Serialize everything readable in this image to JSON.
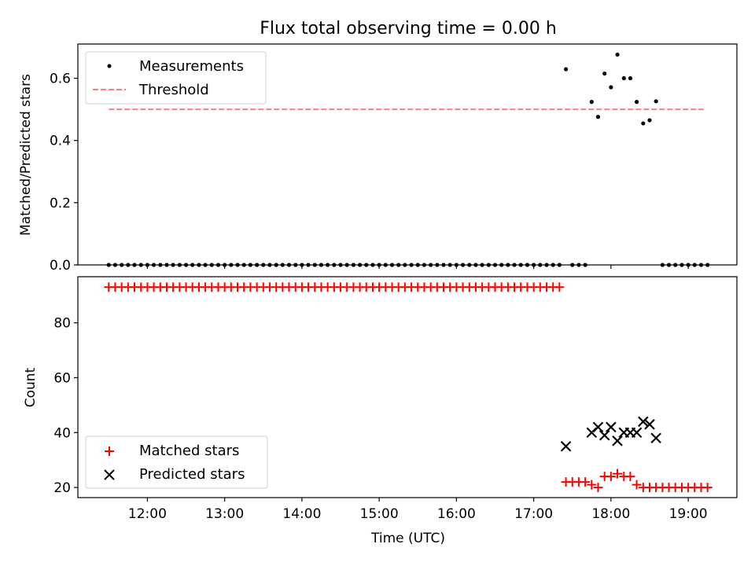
{
  "title": "Flux total observing time = 0.00 h",
  "chart_data": [
    {
      "type": "scatter",
      "ylabel": "Matched/Predicted stars",
      "xlim": [
        11.1,
        19.63
      ],
      "ylim": [
        0,
        0.71
      ],
      "yticks": [
        0.0,
        0.2,
        0.4,
        0.6
      ],
      "ytick_labels": [
        "0.0",
        "0.2",
        "0.4",
        "0.6"
      ],
      "threshold": {
        "value": 0.5,
        "x_range": [
          11.5,
          19.2
        ],
        "color": "#ff7f7f",
        "style": "dashed"
      },
      "legend": {
        "placement": "upper left",
        "entries": [
          "Measurements",
          "Threshold"
        ]
      },
      "series": [
        {
          "name": "Measurements",
          "color": "#000000",
          "marker": "dot",
          "points": [
            [
              11.5,
              0
            ],
            [
              11.583,
              0
            ],
            [
              11.667,
              0
            ],
            [
              11.75,
              0
            ],
            [
              11.833,
              0
            ],
            [
              11.917,
              0
            ],
            [
              12.0,
              0
            ],
            [
              12.083,
              0
            ],
            [
              12.167,
              0
            ],
            [
              12.25,
              0
            ],
            [
              12.333,
              0
            ],
            [
              12.417,
              0
            ],
            [
              12.5,
              0
            ],
            [
              12.583,
              0
            ],
            [
              12.667,
              0
            ],
            [
              12.75,
              0
            ],
            [
              12.833,
              0
            ],
            [
              12.917,
              0
            ],
            [
              13.0,
              0
            ],
            [
              13.083,
              0
            ],
            [
              13.167,
              0
            ],
            [
              13.25,
              0
            ],
            [
              13.333,
              0
            ],
            [
              13.417,
              0
            ],
            [
              13.5,
              0
            ],
            [
              13.583,
              0
            ],
            [
              13.667,
              0
            ],
            [
              13.75,
              0
            ],
            [
              13.833,
              0
            ],
            [
              13.917,
              0
            ],
            [
              14.0,
              0
            ],
            [
              14.083,
              0
            ],
            [
              14.167,
              0
            ],
            [
              14.25,
              0
            ],
            [
              14.333,
              0
            ],
            [
              14.417,
              0
            ],
            [
              14.5,
              0
            ],
            [
              14.583,
              0
            ],
            [
              14.667,
              0
            ],
            [
              14.75,
              0
            ],
            [
              14.833,
              0
            ],
            [
              14.917,
              0
            ],
            [
              15.0,
              0
            ],
            [
              15.083,
              0
            ],
            [
              15.167,
              0
            ],
            [
              15.25,
              0
            ],
            [
              15.333,
              0
            ],
            [
              15.417,
              0
            ],
            [
              15.5,
              0
            ],
            [
              15.583,
              0
            ],
            [
              15.667,
              0
            ],
            [
              15.75,
              0
            ],
            [
              15.833,
              0
            ],
            [
              15.917,
              0
            ],
            [
              16.0,
              0
            ],
            [
              16.083,
              0
            ],
            [
              16.167,
              0
            ],
            [
              16.25,
              0
            ],
            [
              16.333,
              0
            ],
            [
              16.417,
              0
            ],
            [
              16.5,
              0
            ],
            [
              16.583,
              0
            ],
            [
              16.667,
              0
            ],
            [
              16.75,
              0
            ],
            [
              16.833,
              0
            ],
            [
              16.917,
              0
            ],
            [
              17.0,
              0
            ],
            [
              17.083,
              0
            ],
            [
              17.167,
              0
            ],
            [
              17.25,
              0
            ],
            [
              17.333,
              0
            ],
            [
              17.417,
              0.629
            ],
            [
              17.5,
              0
            ],
            [
              17.583,
              0
            ],
            [
              17.667,
              0
            ],
            [
              17.75,
              0.524
            ],
            [
              17.833,
              0.476
            ],
            [
              17.917,
              0.615
            ],
            [
              18.0,
              0.571
            ],
            [
              18.083,
              0.676
            ],
            [
              18.167,
              0.6
            ],
            [
              18.25,
              0.6
            ],
            [
              18.333,
              0.524
            ],
            [
              18.417,
              0.455
            ],
            [
              18.5,
              0.465
            ],
            [
              18.583,
              0.526
            ],
            [
              18.667,
              0
            ],
            [
              18.75,
              0
            ],
            [
              18.833,
              0
            ],
            [
              18.917,
              0
            ],
            [
              19.0,
              0
            ],
            [
              19.083,
              0
            ],
            [
              19.167,
              0
            ],
            [
              19.25,
              0
            ]
          ]
        }
      ]
    },
    {
      "type": "scatter",
      "xlabel": "Time (UTC)",
      "ylabel": "Count",
      "xlim": [
        11.1,
        19.63
      ],
      "ylim": [
        16.3,
        96.8
      ],
      "xticks": [
        12,
        13,
        14,
        15,
        16,
        17,
        18,
        19
      ],
      "xtick_labels": [
        "12:00",
        "13:00",
        "14:00",
        "15:00",
        "16:00",
        "17:00",
        "18:00",
        "19:00"
      ],
      "yticks": [
        20,
        40,
        60,
        80
      ],
      "ytick_labels": [
        "20",
        "40",
        "60",
        "80"
      ],
      "legend": {
        "placement": "lower left",
        "entries": [
          "Matched stars",
          "Predicted stars"
        ]
      },
      "series": [
        {
          "name": "Matched stars",
          "color": "#ff0000",
          "marker": "plus",
          "points": [
            [
              11.5,
              93
            ],
            [
              11.583,
              93
            ],
            [
              11.667,
              93
            ],
            [
              11.75,
              93
            ],
            [
              11.833,
              93
            ],
            [
              11.917,
              93
            ],
            [
              12.0,
              93
            ],
            [
              12.083,
              93
            ],
            [
              12.167,
              93
            ],
            [
              12.25,
              93
            ],
            [
              12.333,
              93
            ],
            [
              12.417,
              93
            ],
            [
              12.5,
              93
            ],
            [
              12.583,
              93
            ],
            [
              12.667,
              93
            ],
            [
              12.75,
              93
            ],
            [
              12.833,
              93
            ],
            [
              12.917,
              93
            ],
            [
              13.0,
              93
            ],
            [
              13.083,
              93
            ],
            [
              13.167,
              93
            ],
            [
              13.25,
              93
            ],
            [
              13.333,
              93
            ],
            [
              13.417,
              93
            ],
            [
              13.5,
              93
            ],
            [
              13.583,
              93
            ],
            [
              13.667,
              93
            ],
            [
              13.75,
              93
            ],
            [
              13.833,
              93
            ],
            [
              13.917,
              93
            ],
            [
              14.0,
              93
            ],
            [
              14.083,
              93
            ],
            [
              14.167,
              93
            ],
            [
              14.25,
              93
            ],
            [
              14.333,
              93
            ],
            [
              14.417,
              93
            ],
            [
              14.5,
              93
            ],
            [
              14.583,
              93
            ],
            [
              14.667,
              93
            ],
            [
              14.75,
              93
            ],
            [
              14.833,
              93
            ],
            [
              14.917,
              93
            ],
            [
              15.0,
              93
            ],
            [
              15.083,
              93
            ],
            [
              15.167,
              93
            ],
            [
              15.25,
              93
            ],
            [
              15.333,
              93
            ],
            [
              15.417,
              93
            ],
            [
              15.5,
              93
            ],
            [
              15.583,
              93
            ],
            [
              15.667,
              93
            ],
            [
              15.75,
              93
            ],
            [
              15.833,
              93
            ],
            [
              15.917,
              93
            ],
            [
              16.0,
              93
            ],
            [
              16.083,
              93
            ],
            [
              16.167,
              93
            ],
            [
              16.25,
              93
            ],
            [
              16.333,
              93
            ],
            [
              16.417,
              93
            ],
            [
              16.5,
              93
            ],
            [
              16.583,
              93
            ],
            [
              16.667,
              93
            ],
            [
              16.75,
              93
            ],
            [
              16.833,
              93
            ],
            [
              16.917,
              93
            ],
            [
              17.0,
              93
            ],
            [
              17.083,
              93
            ],
            [
              17.167,
              93
            ],
            [
              17.25,
              93
            ],
            [
              17.333,
              93
            ],
            [
              17.417,
              22
            ],
            [
              17.5,
              22
            ],
            [
              17.583,
              22
            ],
            [
              17.667,
              22
            ],
            [
              17.75,
              21
            ],
            [
              17.833,
              20
            ],
            [
              17.917,
              24
            ],
            [
              18.0,
              24
            ],
            [
              18.083,
              25
            ],
            [
              18.167,
              24
            ],
            [
              18.25,
              24
            ],
            [
              18.333,
              21
            ],
            [
              18.417,
              20
            ],
            [
              18.5,
              20
            ],
            [
              18.583,
              20
            ],
            [
              18.667,
              20
            ],
            [
              18.75,
              20
            ],
            [
              18.833,
              20
            ],
            [
              18.917,
              20
            ],
            [
              19.0,
              20
            ],
            [
              19.083,
              20
            ],
            [
              19.167,
              20
            ],
            [
              19.25,
              20
            ]
          ]
        },
        {
          "name": "Predicted stars",
          "color": "#000000",
          "marker": "x",
          "points": [
            [
              17.417,
              35
            ],
            [
              17.75,
              40
            ],
            [
              17.833,
              42
            ],
            [
              17.917,
              39
            ],
            [
              18.0,
              42
            ],
            [
              18.083,
              37
            ],
            [
              18.167,
              40
            ],
            [
              18.25,
              40
            ],
            [
              18.333,
              40
            ],
            [
              18.417,
              44
            ],
            [
              18.5,
              43
            ],
            [
              18.583,
              38
            ]
          ]
        }
      ]
    }
  ]
}
